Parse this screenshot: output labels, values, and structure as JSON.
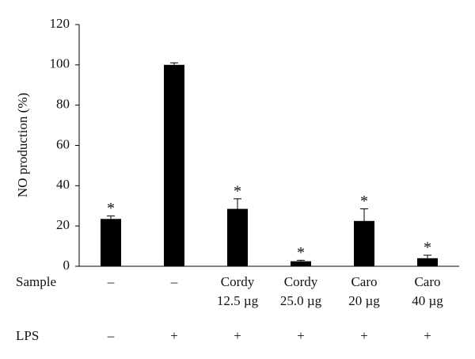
{
  "chart_data": {
    "type": "bar",
    "y_label": "NO production (%)",
    "row_labels": [
      "Sample",
      "LPS"
    ],
    "categories": [
      [
        "–"
      ],
      [
        "–"
      ],
      [
        "Cordy",
        "12.5 µg"
      ],
      [
        "Cordy",
        "25.0 µg"
      ],
      [
        "Caro",
        "20 µg"
      ],
      [
        "Caro",
        "40 µg"
      ]
    ],
    "lps": [
      "–",
      "+",
      "+",
      "+",
      "+",
      "+"
    ],
    "values": [
      23.5,
      100,
      28.5,
      2.5,
      22.5,
      4
    ],
    "errors": [
      1.5,
      1,
      5,
      0.5,
      6,
      1.5
    ],
    "annotations": [
      "*",
      null,
      "*",
      "*",
      "*",
      "*"
    ],
    "color": "#000000",
    "ylim": [
      0,
      120
    ],
    "yticks": [
      0,
      20,
      40,
      60,
      80,
      100,
      120
    ]
  }
}
